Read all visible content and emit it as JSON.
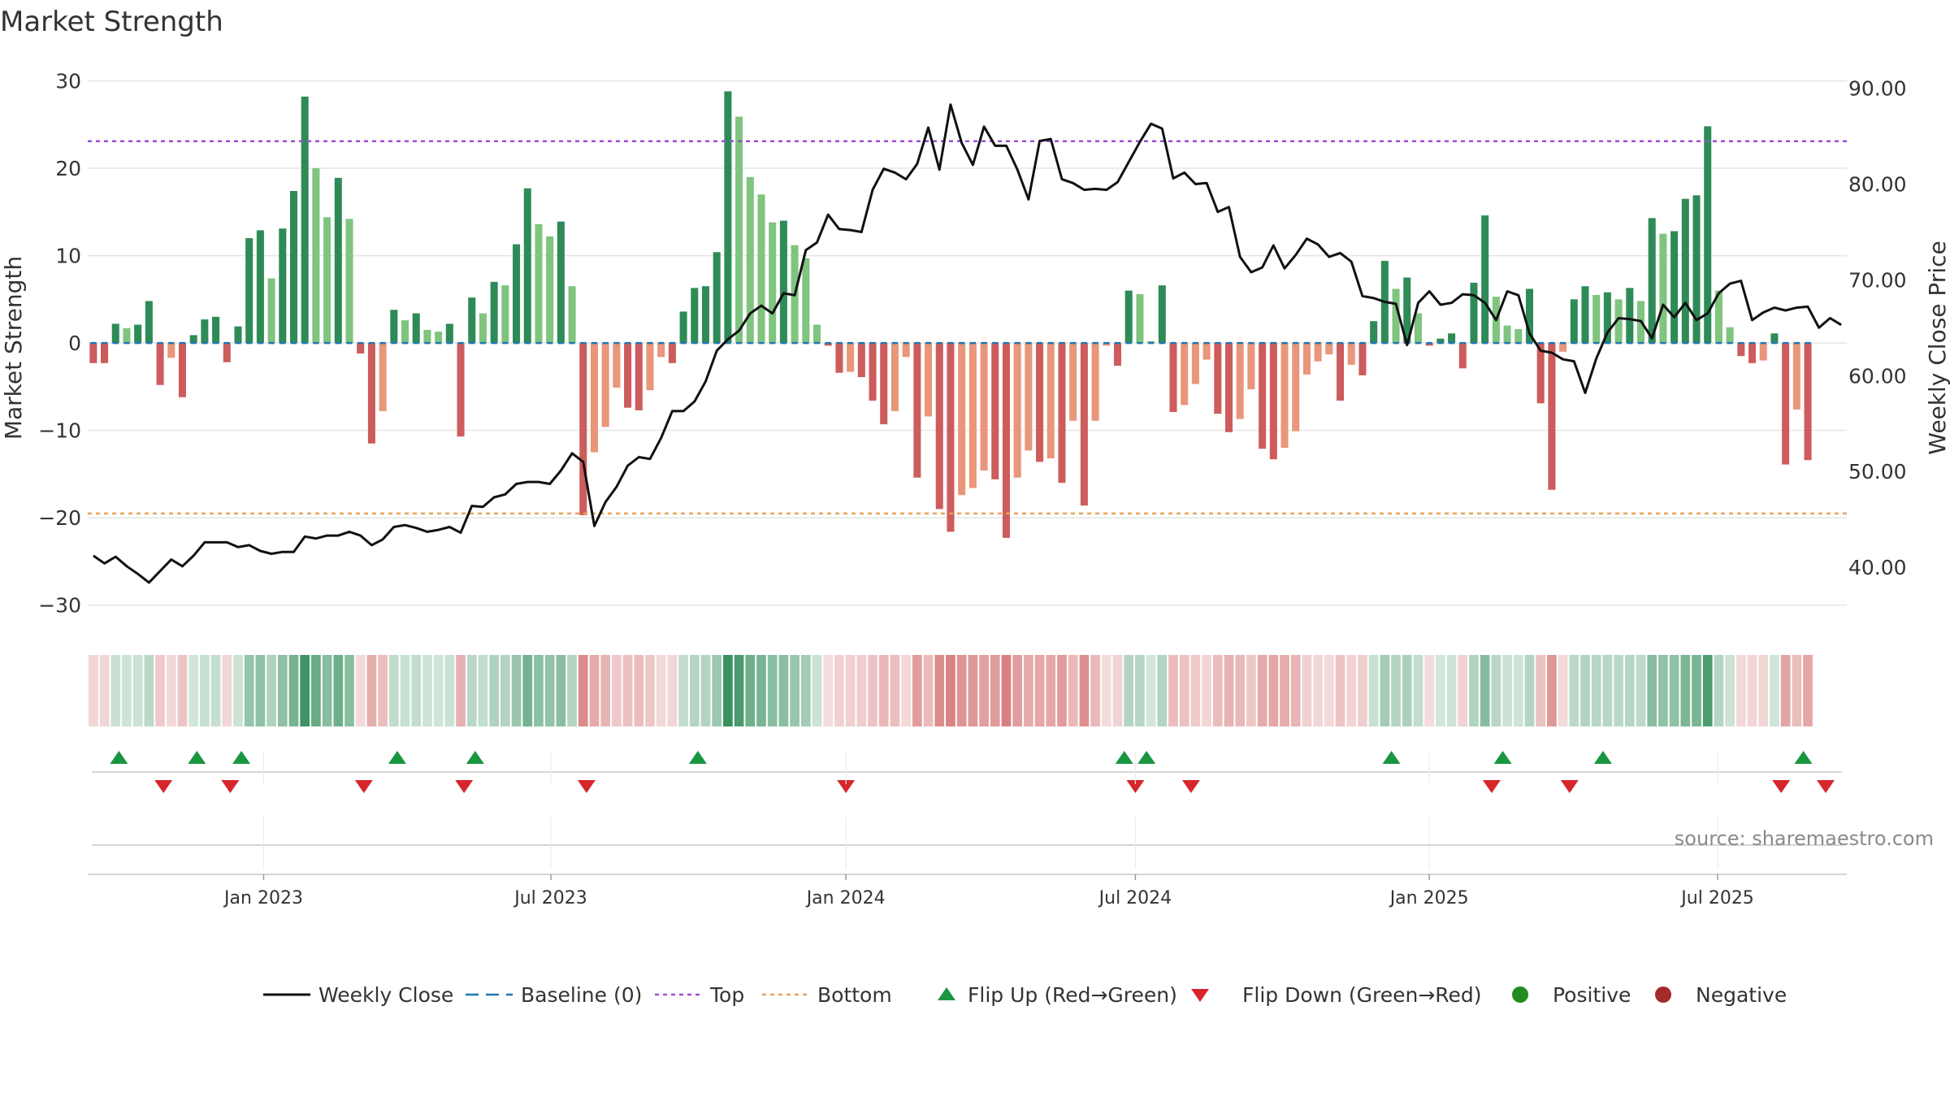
{
  "chart_data": {
    "type": "bar",
    "title": "Market Strength",
    "source": "source: sharemaestro.com",
    "left_axis": {
      "label": "Market Strength",
      "range": [
        -33,
        32
      ],
      "ticks": [
        {
          "v": 30,
          "label": "30"
        },
        {
          "v": 20,
          "label": "20"
        },
        {
          "v": 10,
          "label": "10"
        },
        {
          "v": 0,
          "label": "0"
        },
        {
          "v": -10,
          "label": "−10"
        },
        {
          "v": -20,
          "label": "−20"
        },
        {
          "v": -30,
          "label": "−30"
        }
      ]
    },
    "right_axis": {
      "label": "Weekly Close Price",
      "range": [
        33.3,
        92.6
      ],
      "ticks": [
        {
          "v": 90,
          "label": "90.00"
        },
        {
          "v": 80,
          "label": "80.00"
        },
        {
          "v": 70,
          "label": "70.00"
        },
        {
          "v": 60,
          "label": "60.00"
        },
        {
          "v": 50,
          "label": "50.00"
        },
        {
          "v": 40,
          "label": "40.00"
        }
      ]
    },
    "x_axis": {
      "start_date": "2022-09-19",
      "weeks": 158,
      "ticks": [
        {
          "week": 15.3,
          "label": "Jan 2023"
        },
        {
          "week": 41.1,
          "label": "Jul 2023"
        },
        {
          "week": 67.6,
          "label": "Jan 2024"
        },
        {
          "week": 93.6,
          "label": "Jul 2024"
        },
        {
          "week": 120.0,
          "label": "Jan 2025"
        },
        {
          "week": 145.9,
          "label": "Jul 2025"
        }
      ]
    },
    "thresholds": {
      "top": 23.1,
      "bottom": -19.5,
      "baseline": 0
    },
    "strength": [
      -2.3,
      -2.3,
      2.2,
      1.7,
      2.1,
      4.8,
      -4.8,
      -1.7,
      -6.2,
      0.9,
      2.7,
      3.0,
      -2.2,
      1.9,
      12.0,
      12.9,
      7.4,
      13.1,
      17.4,
      28.2,
      20.0,
      14.4,
      18.9,
      14.2,
      -1.2,
      -11.5,
      -7.8,
      3.8,
      2.6,
      3.4,
      1.5,
      1.3,
      2.2,
      -10.7,
      5.2,
      3.4,
      7.0,
      6.6,
      11.3,
      17.7,
      13.6,
      12.2,
      13.9,
      6.5,
      -19.7,
      -12.5,
      -9.6,
      -5.1,
      -7.4,
      -7.7,
      -5.4,
      -1.6,
      -2.3,
      3.6,
      6.3,
      6.5,
      10.4,
      28.8,
      25.9,
      19.0,
      17.0,
      13.8,
      14.0,
      11.2,
      9.7,
      2.1,
      -0.3,
      -3.4,
      -3.3,
      -3.9,
      -6.6,
      -9.3,
      -7.8,
      -1.6,
      -15.4,
      -8.4,
      -19.0,
      -21.6,
      -17.4,
      -16.6,
      -14.6,
      -15.6,
      -22.3,
      -15.4,
      -12.3,
      -13.6,
      -13.2,
      -16.0,
      -8.9,
      -18.6,
      -8.9,
      -0.3,
      -2.6,
      6.0,
      5.6,
      0.2,
      6.6,
      -7.9,
      -7.1,
      -4.7,
      -1.9,
      -8.1,
      -10.2,
      -8.7,
      -5.3,
      -12.1,
      -13.3,
      -12.0,
      -10.1,
      -3.6,
      -2.1,
      -1.3,
      -6.6,
      -2.5,
      -3.7,
      2.5,
      9.4,
      6.2,
      7.5,
      3.4,
      -0.3,
      0.5,
      1.1,
      -2.9,
      6.9,
      14.6,
      5.3,
      2.0,
      1.6,
      6.2,
      -6.9,
      -16.8,
      -1.0,
      5.0,
      6.5,
      5.5,
      5.8,
      5.0,
      6.3,
      4.8,
      14.3,
      12.5,
      12.8,
      16.5,
      16.9,
      24.8,
      6.0,
      1.8,
      -1.5,
      -2.3,
      -2.0,
      1.1,
      -13.9,
      -7.6,
      -13.4
    ],
    "close": [
      41.2,
      40.4,
      41.1,
      40.1,
      39.3,
      38.4,
      39.6,
      40.8,
      40.1,
      41.2,
      42.6,
      42.6,
      42.6,
      42.1,
      42.3,
      41.7,
      41.4,
      41.6,
      41.6,
      43.2,
      43.0,
      43.3,
      43.3,
      43.7,
      43.3,
      42.3,
      42.9,
      44.2,
      44.4,
      44.1,
      43.7,
      43.9,
      44.2,
      43.6,
      46.4,
      46.3,
      47.3,
      47.6,
      48.7,
      48.9,
      48.9,
      48.7,
      50.1,
      51.9,
      51.0,
      44.3,
      46.8,
      48.4,
      50.6,
      51.5,
      51.3,
      53.5,
      56.3,
      56.3,
      57.3,
      59.4,
      62.6,
      63.8,
      64.7,
      66.5,
      67.3,
      66.5,
      68.6,
      68.4,
      73.1,
      73.9,
      76.8,
      75.3,
      75.2,
      75.0,
      79.4,
      81.6,
      81.2,
      80.5,
      82.1,
      85.9,
      81.5,
      88.3,
      84.3,
      82.0,
      86.0,
      84.0,
      84.0,
      81.5,
      78.4,
      84.5,
      84.7,
      80.5,
      80.1,
      79.4,
      79.5,
      79.4,
      80.2,
      82.3,
      84.4,
      86.3,
      85.8,
      80.6,
      81.2,
      80.0,
      80.1,
      77.1,
      77.6,
      72.4,
      70.8,
      71.3,
      73.6,
      71.2,
      72.6,
      74.3,
      73.7,
      72.4,
      72.8,
      71.9,
      68.3,
      68.1,
      67.7,
      67.5,
      63.2,
      67.6,
      68.8,
      67.4,
      67.6,
      68.5,
      68.4,
      67.6,
      65.8,
      68.8,
      68.4,
      64.4,
      62.6,
      62.4,
      61.7,
      61.5,
      58.2,
      61.8,
      64.5,
      66.0,
      65.9,
      65.7,
      63.9,
      67.4,
      66.1,
      67.6,
      65.8,
      66.5,
      68.6,
      69.6,
      69.9,
      65.8,
      66.6,
      67.1,
      66.8,
      67.1,
      67.2,
      65.0,
      66.0,
      65.3
    ],
    "flips": [
      {
        "week": 2.3,
        "dir": "up"
      },
      {
        "week": 6.3,
        "dir": "down"
      },
      {
        "week": 9.3,
        "dir": "up"
      },
      {
        "week": 12.3,
        "dir": "down"
      },
      {
        "week": 13.3,
        "dir": "up"
      },
      {
        "week": 24.3,
        "dir": "down"
      },
      {
        "week": 27.3,
        "dir": "up"
      },
      {
        "week": 33.3,
        "dir": "down"
      },
      {
        "week": 34.3,
        "dir": "up"
      },
      {
        "week": 44.3,
        "dir": "down"
      },
      {
        "week": 54.3,
        "dir": "up"
      },
      {
        "week": 67.6,
        "dir": "down"
      },
      {
        "week": 92.6,
        "dir": "up"
      },
      {
        "week": 93.6,
        "dir": "down"
      },
      {
        "week": 94.6,
        "dir": "up"
      },
      {
        "week": 98.6,
        "dir": "down"
      },
      {
        "week": 116.6,
        "dir": "up"
      },
      {
        "week": 125.6,
        "dir": "down"
      },
      {
        "week": 126.6,
        "dir": "up"
      },
      {
        "week": 132.6,
        "dir": "down"
      },
      {
        "week": 135.6,
        "dir": "up"
      },
      {
        "week": 151.6,
        "dir": "down"
      },
      {
        "week": 153.6,
        "dir": "up"
      },
      {
        "week": 155.6,
        "dir": "down"
      }
    ],
    "legend": {
      "placement": "bottom-center",
      "entries": [
        {
          "key": "close",
          "label": "Weekly Close"
        },
        {
          "key": "baseline",
          "label": "Baseline (0)"
        },
        {
          "key": "top",
          "label": "Top"
        },
        {
          "key": "bottom",
          "label": "Bottom"
        },
        {
          "key": "flip_up",
          "label": "Flip Up (Red→Green)"
        },
        {
          "key": "flip_down",
          "label": "Flip Down (Green→Red)"
        },
        {
          "key": "positive",
          "label": "Positive"
        },
        {
          "key": "negative",
          "label": "Negative"
        }
      ]
    },
    "colors": {
      "positive_strong": "#2e8b57",
      "positive_light": "#7fc47f",
      "negative_strong": "#cd5c5c",
      "negative_light": "#e9967a",
      "close_line": "#111111",
      "baseline": "#1f77b4",
      "top": "#9b4fd6",
      "bottom": "#e8a25c",
      "flip_up": "#1a9641",
      "flip_down": "#d7262b",
      "positive_marker": "#228b22",
      "negative_marker": "#a52a2a",
      "grid": "#e6e6e6"
    },
    "grid": true
  }
}
